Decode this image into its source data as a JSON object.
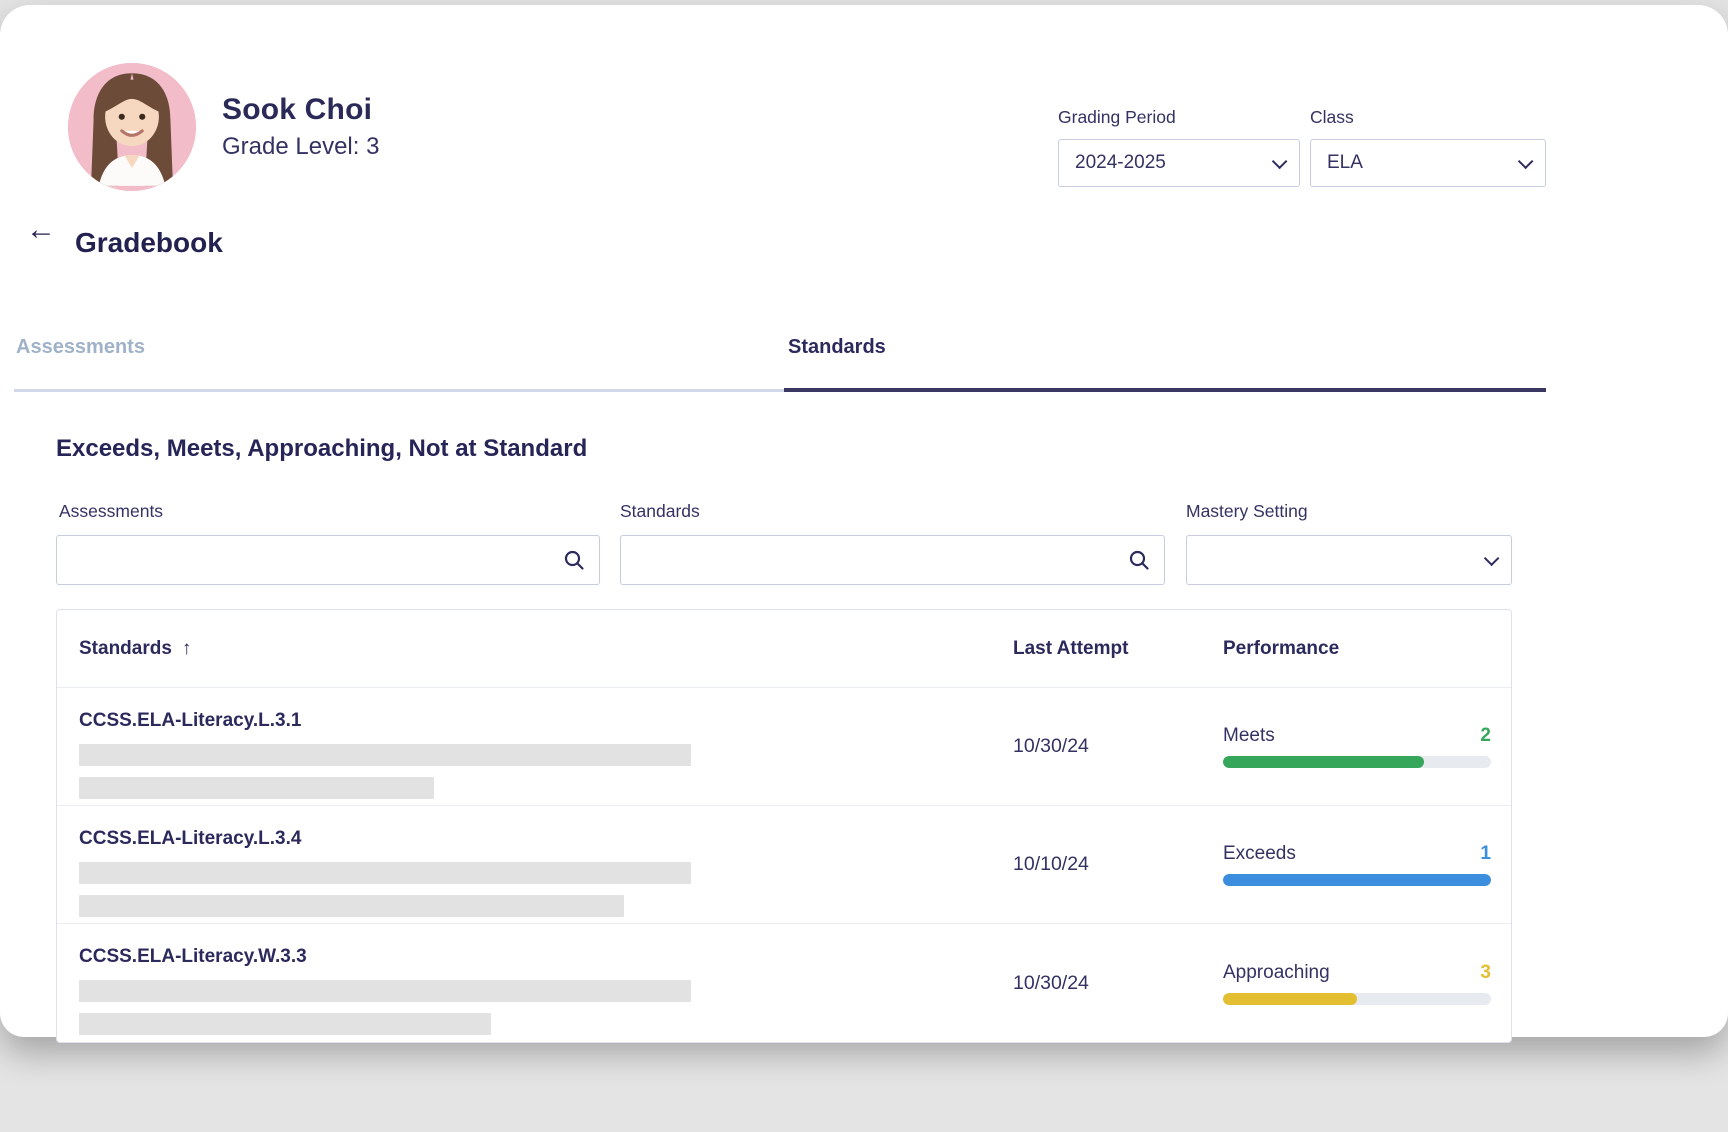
{
  "student": {
    "name": "Sook Choi",
    "grade_level": "Grade Level: 3"
  },
  "header_filters": {
    "grading_period": {
      "label": "Grading Period",
      "value": "2024-2025"
    },
    "class": {
      "label": "Class",
      "value": "ELA"
    }
  },
  "page": {
    "back_icon": "←",
    "title": "Gradebook"
  },
  "tabs": {
    "assessments": {
      "label": "Assessments",
      "active": false
    },
    "standards": {
      "label": "Standards",
      "active": true
    }
  },
  "section_title": "Exceeds, Meets, Approaching, Not at Standard",
  "filters": {
    "assessments": {
      "label": "Assessments",
      "value": "",
      "icon": "search-icon"
    },
    "standards": {
      "label": "Standards",
      "value": "",
      "icon": "search-icon"
    },
    "mastery_setting": {
      "label": "Mastery Setting",
      "value": "",
      "icon": "chevron-down-icon"
    }
  },
  "table": {
    "columns": {
      "standards": "Standards",
      "last_attempt": "Last Attempt",
      "performance": "Performance"
    },
    "sort_icon": "↑",
    "rows": [
      {
        "standard": "CCSS.ELA-Literacy.L.3.1",
        "last_attempt": "10/30/24",
        "performance": {
          "label": "Meets",
          "value": "2",
          "color": "#36a65b",
          "fill_percent": 75
        },
        "redacted_bar_widths": [
          612,
          355
        ]
      },
      {
        "standard": "CCSS.ELA-Literacy.L.3.4",
        "last_attempt": "10/10/24",
        "performance": {
          "label": "Exceeds",
          "value": "1",
          "color": "#3b8ede",
          "fill_percent": 100
        },
        "redacted_bar_widths": [
          612,
          545
        ]
      },
      {
        "standard": "CCSS.ELA-Literacy.W.3.3",
        "last_attempt": "10/30/24",
        "performance": {
          "label": "Approaching",
          "value": "3",
          "color": "#e4be31",
          "fill_percent": 50
        },
        "redacted_bar_widths": [
          612,
          412
        ]
      }
    ]
  },
  "colors": {
    "navy_text": "#2c2a5c",
    "inactive_tab": "#9fb2c8",
    "tab_underline_active": "#3a3763",
    "tab_underline_inactive": "#d3d8e8",
    "meets_green": "#36a65b",
    "exceeds_blue": "#3b8ede",
    "approaching_yellow": "#e4be31",
    "bar_track": "#e7eaef",
    "redacted_gray": "#e2e2e2"
  }
}
